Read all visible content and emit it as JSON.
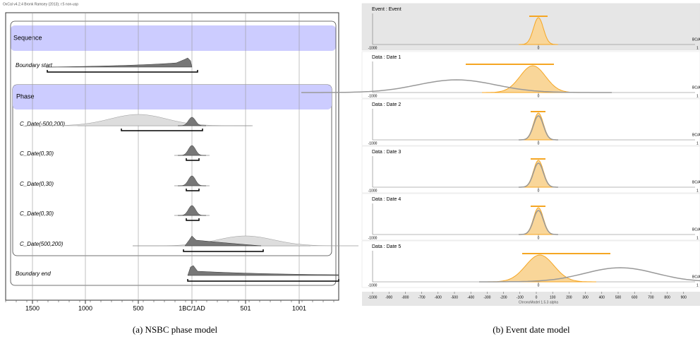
{
  "left_panel": {
    "header": "OxCal v4.2.4 Bronk Ramsey (2013); r:5 non-usp",
    "sequence_label": "Sequence",
    "phase_label": "Phase",
    "rows": [
      "Boundary start",
      "C_Date(-500,200)",
      "C_Date(0,30)",
      "C_Date(0,30)",
      "C_Date(0,30)",
      "C_Date(500,200)",
      "Boundary end"
    ],
    "x_axis_labels": [
      "1500",
      "1000",
      "500",
      "1BC/1AD",
      "501",
      "1001"
    ]
  },
  "right_panel": {
    "rows": [
      "Event : Event",
      "Data : Date 1",
      "Data : Date 2",
      "Data : Date 3",
      "Data : Date 4",
      "Data : Date 5"
    ],
    "row_axis": {
      "min": "-1000",
      "zero": "0",
      "unit": "BC/A",
      "max": "1"
    },
    "bottom_axis_labels": [
      "-1000",
      "-900",
      "-800",
      "-700",
      "-600",
      "-500",
      "-400",
      "-300",
      "-200",
      "-100",
      "0",
      "100",
      "200",
      "300",
      "400",
      "500",
      "600",
      "700",
      "800",
      "900"
    ],
    "footer": "ChronoModel 1.5.3 alpha"
  },
  "captions": {
    "a": "(a) NSBC phase model",
    "b": "(b) Event date model"
  }
}
